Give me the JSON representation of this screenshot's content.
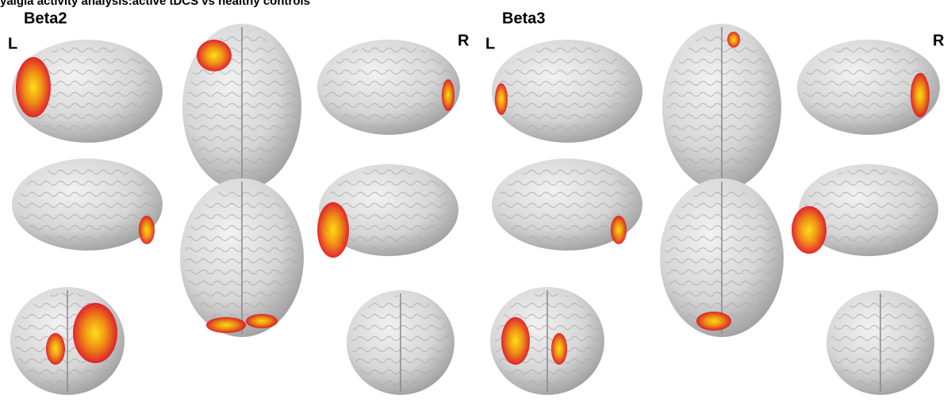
{
  "header": {
    "title": "yalgia activity analysis:active tDCS vs healthy controls"
  },
  "panels": [
    {
      "title": "Beta2",
      "left_label": "L",
      "right_label": "R"
    },
    {
      "title": "Beta3",
      "left_label": "L",
      "right_label": "R"
    }
  ]
}
